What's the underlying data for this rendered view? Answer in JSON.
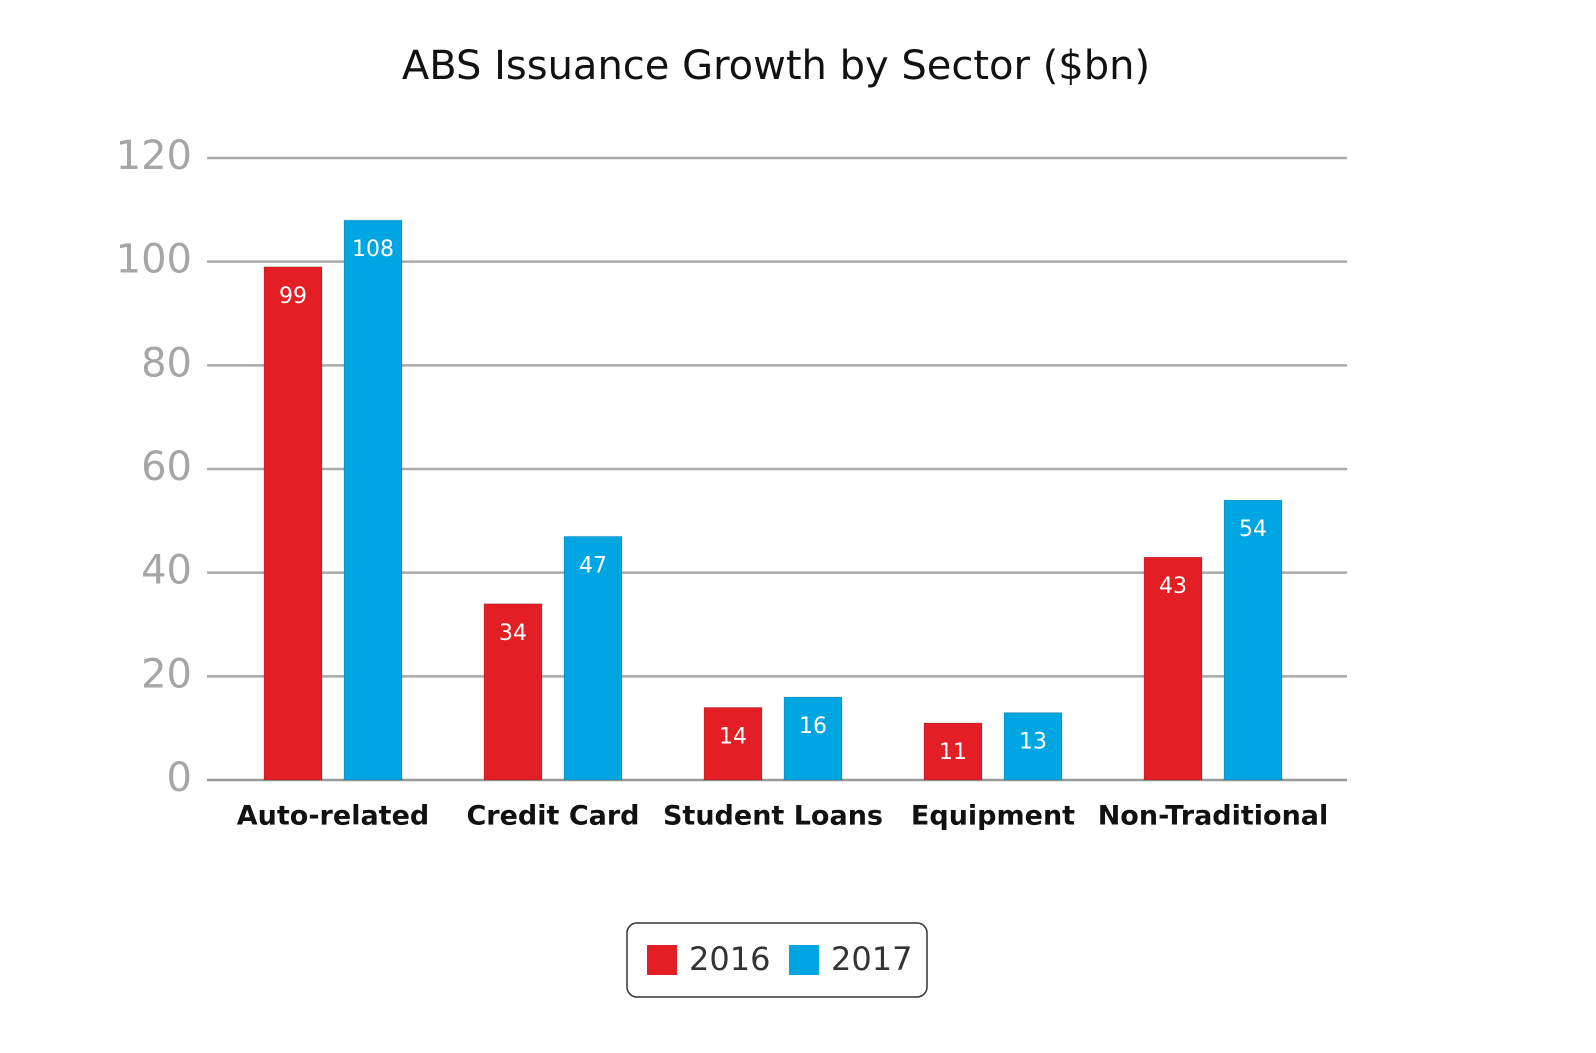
{
  "chart_data": {
    "type": "bar",
    "title": "ABS Issuance Growth by Sector ($bn)",
    "categories": [
      "Auto-related",
      "Credit Card",
      "Student Loans",
      "Equipment",
      "Non-Traditional"
    ],
    "series": [
      {
        "name": "2016",
        "color": "#e31e24",
        "values": [
          99,
          34,
          14,
          11,
          43
        ]
      },
      {
        "name": "2017",
        "color": "#00a6e2",
        "values": [
          108,
          47,
          16,
          13,
          54
        ]
      }
    ],
    "ylim": [
      0,
      120
    ],
    "yticks": [
      0,
      20,
      40,
      60,
      80,
      100,
      120
    ],
    "grid": true,
    "legend": "bottom"
  }
}
